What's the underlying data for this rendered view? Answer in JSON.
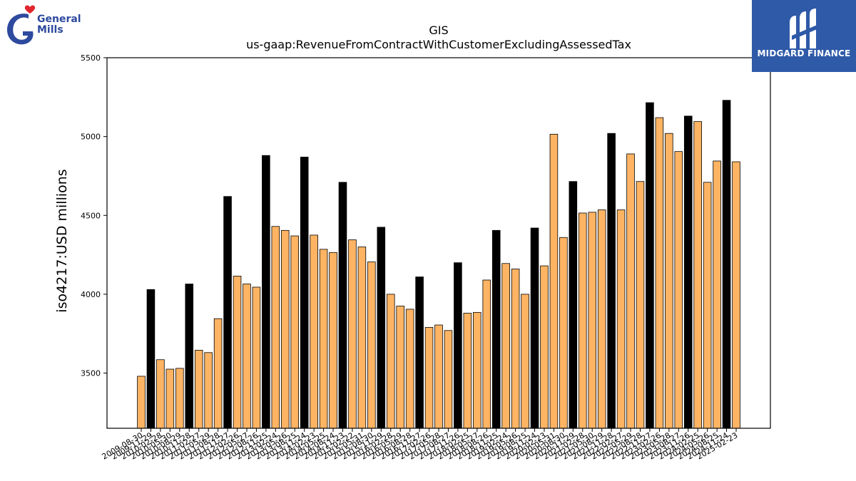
{
  "brand_logo": {
    "line1": "General",
    "line2": "Mills",
    "heart_color": "#e0262f",
    "brand_color": "#2e4a9e"
  },
  "watermark": {
    "text": "MIDGARD FINANCE",
    "background": "#2f5aa8"
  },
  "chart_data": {
    "type": "bar",
    "title": "GIS",
    "subtitle": "us-gaap:RevenueFromContractWithCustomerExcludingAssessedTax",
    "xlabel": "",
    "ylabel": "iso4217:USD  millions",
    "ylim": [
      3150,
      5500
    ],
    "yticks": [
      3500,
      4000,
      4500,
      5000,
      5500
    ],
    "grid": false,
    "legend": "none",
    "colors": {
      "quarter": "#ffb464",
      "annual": "#000000",
      "edge": "#000000"
    },
    "categories": [
      "2009-08-30",
      "2009-11-29",
      "2010-02-28",
      "2010-05-30",
      "2010-08-29",
      "2010-11-28",
      "2011-02-27",
      "2011-05-29",
      "2011-08-28",
      "2011-11-27",
      "2012-02-26",
      "2012-05-27",
      "2012-08-26",
      "2012-11-25",
      "2013-02-24",
      "2013-05-26",
      "2013-08-25",
      "2013-11-24",
      "2014-02-23",
      "2014-05-25",
      "2014-08-24",
      "2014-11-23",
      "2015-02-22",
      "2015-05-31",
      "2015-08-30",
      "2015-11-29",
      "2016-02-28",
      "2016-05-29",
      "2016-08-28",
      "2016-11-27",
      "2017-02-26",
      "2017-05-28",
      "2017-08-27",
      "2017-11-26",
      "2018-02-25",
      "2018-05-27",
      "2018-08-26",
      "2018-11-25",
      "2019-02-24",
      "2019-05-26",
      "2019-08-25",
      "2019-11-24",
      "2020-02-23",
      "2020-05-31",
      "2020-08-30",
      "2020-11-29",
      "2021-02-28",
      "2021-05-30",
      "2021-08-29",
      "2021-11-28",
      "2022-02-27",
      "2022-05-29",
      "2022-08-28",
      "2022-11-27",
      "2023-02-26",
      "2023-05-28",
      "2023-08-27",
      "2023-11-26",
      "2024-02-25",
      "2024-05-26",
      "2024-08-25",
      "2024-11-24",
      "2025-02-23"
    ],
    "values": [
      3480,
      4030,
      3585,
      3525,
      3530,
      4065,
      3645,
      3630,
      3845,
      4620,
      4115,
      4065,
      4045,
      4880,
      4430,
      4405,
      4370,
      4870,
      4375,
      4285,
      4265,
      4710,
      4345,
      4300,
      4205,
      4425,
      4000,
      3925,
      3905,
      4110,
      3790,
      3805,
      3770,
      4200,
      3880,
      3885,
      4090,
      4405,
      4195,
      4160,
      4000,
      4420,
      4180,
      5015,
      4360,
      4715,
      4515,
      4520,
      4535,
      5020,
      4535,
      4890,
      4715,
      5215,
      5120,
      5020,
      4905,
      5130,
      5095,
      4710,
      4845,
      5230,
      4840
    ],
    "annual": [
      false,
      true,
      false,
      false,
      false,
      true,
      false,
      false,
      false,
      true,
      false,
      false,
      false,
      true,
      false,
      false,
      false,
      true,
      false,
      false,
      false,
      true,
      false,
      false,
      false,
      true,
      false,
      false,
      false,
      true,
      false,
      false,
      false,
      true,
      false,
      false,
      false,
      true,
      false,
      false,
      false,
      true,
      false,
      false,
      false,
      true,
      false,
      false,
      false,
      true,
      false,
      false,
      false,
      true,
      false,
      false,
      false,
      true,
      false,
      false,
      false,
      true,
      false
    ]
  }
}
